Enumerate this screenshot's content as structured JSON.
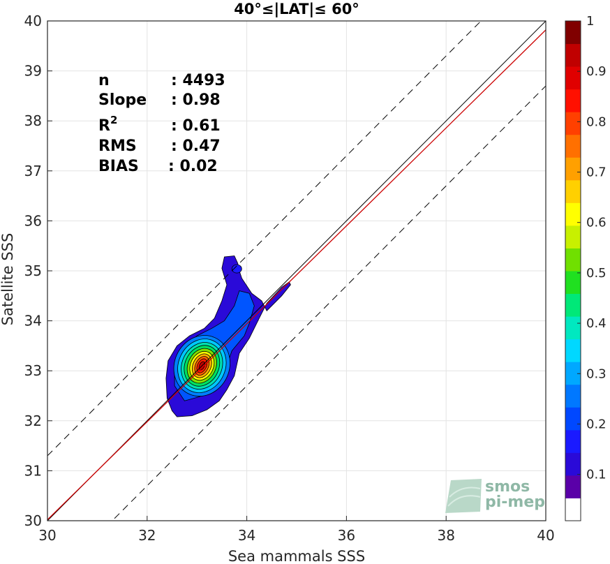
{
  "chart_data": {
    "type": "heatmap",
    "title": "40°≤|LAT|≤ 60°",
    "xlabel": "Sea mammals SSS",
    "ylabel": "Satellite SSS",
    "xlim": [
      30,
      40
    ],
    "ylim": [
      30,
      40
    ],
    "xticks": [
      "30",
      "32",
      "34",
      "36",
      "38",
      "40"
    ],
    "yticks": [
      "30",
      "31",
      "32",
      "33",
      "34",
      "35",
      "36",
      "37",
      "38",
      "39",
      "40"
    ],
    "grid": true,
    "stats": [
      {
        "label": "n",
        "value": ": 4493"
      },
      {
        "label": "Slope",
        "value": ": 0.98"
      },
      {
        "label": "R",
        "sup": "2",
        "value": ": 0.61"
      },
      {
        "label": "RMS",
        "value": ": 0.47"
      },
      {
        "label": "BIAS",
        "value": ": 0.02"
      }
    ],
    "density_peak": {
      "x": 33.1,
      "y": 33.1
    },
    "contour_levels": [
      0.05,
      0.1,
      0.2,
      0.3,
      0.4,
      0.5,
      0.6,
      0.7,
      0.8,
      0.9
    ],
    "reference_lines": [
      {
        "name": "1:1",
        "style": "solid",
        "color": "#000000",
        "x": [
          30,
          40
        ],
        "y": [
          30,
          40
        ]
      },
      {
        "name": "regression",
        "style": "solid",
        "color": "#cc0000",
        "x": [
          30,
          40
        ],
        "y": [
          30.02,
          39.82
        ]
      },
      {
        "name": "upper",
        "style": "dashed",
        "color": "#000000",
        "x": [
          30,
          40
        ],
        "y": [
          31.3,
          41.3
        ]
      },
      {
        "name": "lower",
        "style": "dashed",
        "color": "#000000",
        "x": [
          30,
          40
        ],
        "y": [
          28.7,
          38.7
        ]
      }
    ],
    "colorbar": {
      "ticks": [
        "0.1",
        "0.2",
        "0.3",
        "0.4",
        "0.5",
        "0.6",
        "0.7",
        "0.8",
        "0.9",
        "1"
      ],
      "range": [
        0,
        1
      ],
      "colors": [
        "#ffffff",
        "#5a00a8",
        "#2a0ad8",
        "#1a1aff",
        "#0048ff",
        "#0078ff",
        "#00a8ff",
        "#00d8ff",
        "#00e8c0",
        "#00e878",
        "#20e020",
        "#70e000",
        "#c8f000",
        "#ffff00",
        "#ffd000",
        "#ffa000",
        "#ff7000",
        "#ff4000",
        "#ff1000",
        "#e00000",
        "#c00000",
        "#800000"
      ]
    },
    "logo": {
      "line1": "smos",
      "line2": "pi-mep"
    }
  }
}
